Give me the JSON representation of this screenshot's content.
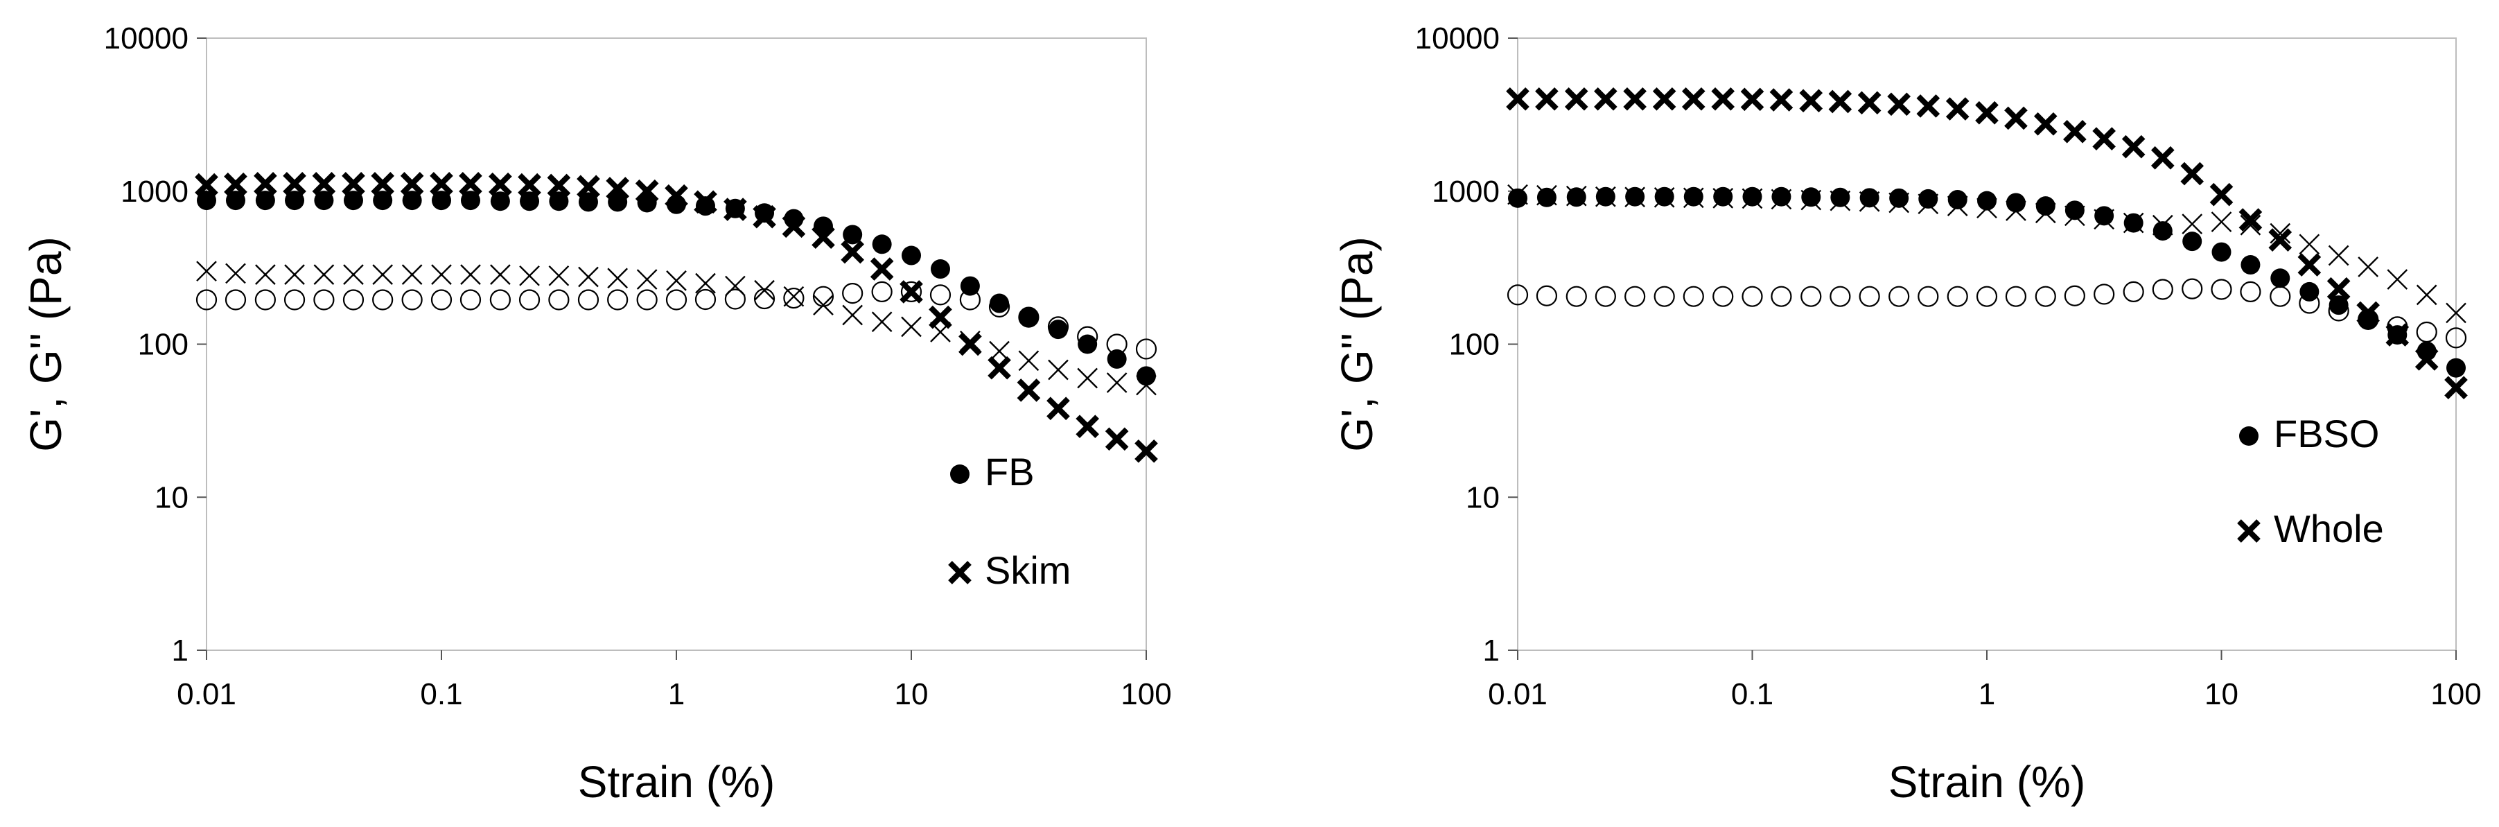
{
  "chart_data": [
    {
      "type": "scatter",
      "title": "",
      "xlabel": "Strain (%)",
      "ylabel": "G', G'' (Pa)",
      "xscale": "log",
      "yscale": "log",
      "xlim": [
        0.01,
        100
      ],
      "ylim": [
        1,
        10000
      ],
      "xticks": [
        "0.01",
        "0.1",
        "1",
        "10",
        "100"
      ],
      "yticks": [
        "1",
        "10",
        "100",
        "1000",
        "10000"
      ],
      "grid": false,
      "legend_position": "bottom-right",
      "legend": [
        {
          "label": "FB",
          "marker": "filled-circle"
        },
        {
          "label": "Skim",
          "marker": "bold-x"
        }
      ],
      "x": [
        0.01,
        0.0133,
        0.0178,
        0.0237,
        0.0316,
        0.0422,
        0.0562,
        0.075,
        0.1,
        0.133,
        0.178,
        0.237,
        0.316,
        0.422,
        0.562,
        0.75,
        1,
        1.33,
        1.78,
        2.37,
        3.16,
        4.22,
        5.62,
        7.5,
        10,
        13.3,
        17.8,
        23.7,
        31.6,
        42.2,
        56.2,
        75,
        100
      ],
      "series": [
        {
          "label": "FB",
          "quantity": "G'",
          "marker": "filled-circle",
          "values": [
            870,
            870,
            870,
            870,
            870,
            870,
            870,
            870,
            870,
            870,
            860,
            860,
            860,
            850,
            850,
            840,
            820,
            800,
            770,
            720,
            660,
            590,
            520,
            450,
            380,
            310,
            240,
            185,
            150,
            125,
            100,
            80,
            62
          ]
        },
        {
          "label": "FB",
          "quantity": "G''",
          "marker": "open-circle",
          "values": [
            195,
            195,
            195,
            195,
            195,
            195,
            195,
            195,
            195,
            195,
            195,
            195,
            195,
            195,
            195,
            195,
            195,
            196,
            197,
            198,
            200,
            205,
            215,
            220,
            220,
            210,
            195,
            175,
            150,
            130,
            112,
            100,
            93
          ]
        },
        {
          "label": "Skim",
          "quantity": "G'",
          "marker": "bold-x",
          "values": [
            1100,
            1110,
            1120,
            1120,
            1120,
            1120,
            1120,
            1120,
            1120,
            1120,
            1110,
            1100,
            1090,
            1070,
            1040,
            1000,
            930,
            850,
            760,
            680,
            590,
            500,
            400,
            310,
            220,
            150,
            100,
            70,
            50,
            38,
            29,
            24,
            20
          ]
        },
        {
          "label": "Skim",
          "quantity": "G''",
          "marker": "thin-x",
          "values": [
            300,
            290,
            285,
            285,
            285,
            285,
            285,
            285,
            285,
            285,
            285,
            280,
            280,
            275,
            270,
            265,
            260,
            250,
            240,
            225,
            205,
            180,
            155,
            140,
            130,
            120,
            105,
            90,
            78,
            68,
            60,
            56,
            54
          ]
        }
      ]
    },
    {
      "type": "scatter",
      "title": "",
      "xlabel": "Strain (%)",
      "ylabel": "G', G'' (Pa)",
      "xscale": "log",
      "yscale": "log",
      "xlim": [
        0.01,
        100
      ],
      "ylim": [
        1,
        10000
      ],
      "xticks": [
        "0.01",
        "0.1",
        "1",
        "10",
        "100"
      ],
      "yticks": [
        "1",
        "10",
        "100",
        "1000",
        "10000"
      ],
      "grid": false,
      "legend_position": "bottom-right",
      "legend": [
        {
          "label": "FBSO",
          "marker": "filled-circle"
        },
        {
          "label": "Whole",
          "marker": "bold-x"
        }
      ],
      "x": [
        0.01,
        0.0133,
        0.0178,
        0.0237,
        0.0316,
        0.0422,
        0.0562,
        0.075,
        0.1,
        0.133,
        0.178,
        0.237,
        0.316,
        0.422,
        0.562,
        0.75,
        1,
        1.33,
        1.78,
        2.37,
        3.16,
        4.22,
        5.62,
        7.5,
        10,
        13.3,
        17.8,
        23.7,
        31.6,
        42.2,
        56.2,
        75,
        100
      ],
      "series": [
        {
          "label": "FBSO",
          "quantity": "G'",
          "marker": "filled-circle",
          "values": [
            900,
            910,
            915,
            920,
            920,
            920,
            920,
            920,
            920,
            920,
            915,
            910,
            905,
            900,
            890,
            880,
            865,
            840,
            800,
            750,
            690,
            620,
            550,
            470,
            400,
            330,
            270,
            220,
            180,
            145,
            115,
            90,
            70
          ]
        },
        {
          "label": "FBSO",
          "quantity": "G''",
          "marker": "open-circle",
          "values": [
            210,
            207,
            205,
            205,
            205,
            205,
            205,
            205,
            205,
            205,
            205,
            205,
            205,
            205,
            205,
            205,
            205,
            205,
            205,
            207,
            212,
            220,
            228,
            230,
            228,
            220,
            205,
            185,
            165,
            145,
            130,
            120,
            110
          ]
        },
        {
          "label": "Whole",
          "quantity": "G'",
          "marker": "bold-x",
          "values": [
            4000,
            4000,
            4000,
            4000,
            4000,
            4000,
            4000,
            4000,
            3980,
            3950,
            3900,
            3850,
            3780,
            3700,
            3600,
            3450,
            3250,
            3000,
            2750,
            2450,
            2200,
            1950,
            1650,
            1300,
            950,
            650,
            480,
            330,
            230,
            160,
            115,
            80,
            52
          ]
        },
        {
          "label": "Whole",
          "quantity": "G''",
          "marker": "thin-x",
          "values": [
            950,
            940,
            930,
            920,
            915,
            910,
            905,
            900,
            895,
            885,
            875,
            865,
            855,
            840,
            825,
            800,
            775,
            745,
            720,
            690,
            655,
            620,
            600,
            610,
            630,
            600,
            530,
            450,
            380,
            320,
            265,
            210,
            160
          ]
        }
      ]
    }
  ]
}
